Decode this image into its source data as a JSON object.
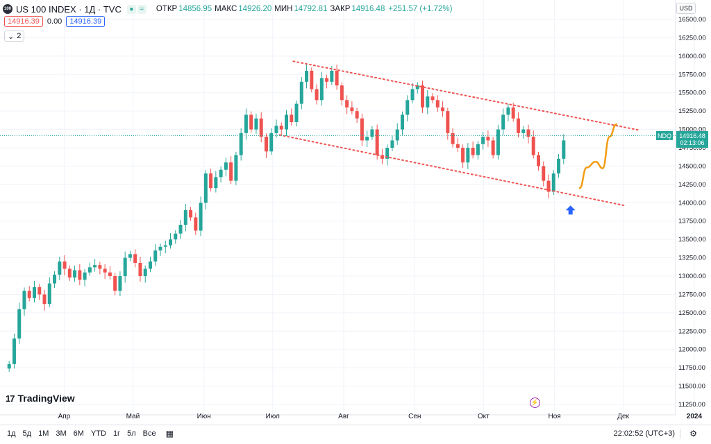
{
  "header": {
    "logo_text": "100",
    "title": "US 100 INDEX · 1Д · TVC",
    "icons": [
      "dot-icon",
      "wave-icon"
    ],
    "open_label": "ОТКР",
    "open": "14856.95",
    "high_label": "МАКС",
    "high": "14926.20",
    "low_label": "МИН",
    "low": "14792.81",
    "close_label": "ЗАКР",
    "close": "14916.48",
    "change": "+251.57 (+1.72%)",
    "bid": "14916.39",
    "spread": "0.00",
    "ask": "14916.39",
    "indicators_count": "2",
    "currency": "USD"
  },
  "price_tags": {
    "symbol": "NDQ",
    "price": "14916.48",
    "countdown": "02:13:06"
  },
  "branding": {
    "mark": "17",
    "name": "TradingView"
  },
  "bottom_bar": {
    "timeframes": [
      "1д",
      "5д",
      "1М",
      "3М",
      "6М",
      "YTD",
      "1г",
      "5л",
      "Все"
    ],
    "clock": "22:02:52 (UTC+3)"
  },
  "colors": {
    "up": "#26a69a",
    "down": "#ef5350",
    "trendline": "#ef5350",
    "projection": "#f39c12",
    "marker": "#2962ff"
  },
  "chart_data": {
    "type": "candlestick",
    "title": "US 100 INDEX · 1Д · TVC",
    "ylim": [
      11150,
      16600
    ],
    "y_ticks": [
      11250,
      11500,
      11750,
      12000,
      12250,
      12500,
      12750,
      13000,
      13250,
      13500,
      13750,
      14000,
      14250,
      14500,
      14750,
      15000,
      15250,
      15500,
      15750,
      16000,
      16250,
      16500
    ],
    "x_ticks": [
      {
        "label": "Апр",
        "day": 25
      },
      {
        "label": "Май",
        "day": 55
      },
      {
        "label": "Июн",
        "day": 86
      },
      {
        "label": "Июл",
        "day": 116
      },
      {
        "label": "Авг",
        "day": 147
      },
      {
        "label": "Сен",
        "day": 178
      },
      {
        "label": "Окт",
        "day": 208
      },
      {
        "label": "Ноя",
        "day": 239
      },
      {
        "label": "Дек",
        "day": 269
      },
      {
        "label": "2024",
        "day": 300
      }
    ],
    "x_range": [
      0,
      318
    ],
    "candle_days_start": 1,
    "closes": [
      11800,
      12150,
      12550,
      12800,
      12700,
      12850,
      12750,
      12620,
      12900,
      13020,
      13200,
      13100,
      12980,
      13080,
      12950,
      13050,
      13120,
      13150,
      13100,
      13050,
      13000,
      12800,
      13000,
      13250,
      13300,
      13180,
      13000,
      13100,
      13200,
      13350,
      13400,
      13420,
      13500,
      13580,
      13700,
      13900,
      13800,
      13620,
      14000,
      14400,
      14200,
      14350,
      14450,
      14550,
      14300,
      14650,
      14950,
      15200,
      15000,
      15150,
      14900,
      14700,
      14950,
      15050,
      15000,
      15200,
      15100,
      15350,
      15650,
      15800,
      15550,
      15400,
      15700,
      15650,
      15800,
      15600,
      15400,
      15300,
      15250,
      15150,
      14850,
      14900,
      15000,
      14650,
      14600,
      14750,
      14850,
      15000,
      15200,
      15400,
      15550,
      15600,
      15300,
      15450,
      15400,
      15300,
      15250,
      14950,
      14800,
      14750,
      14550,
      14750,
      14650,
      14800,
      14900,
      14850,
      14650,
      15000,
      15200,
      15300,
      15150,
      14950,
      15000,
      14900,
      14650,
      14500,
      14300,
      14150,
      14400,
      14600,
      14850
    ],
    "trendlines": [
      {
        "style": "dotted",
        "from": {
          "day": 125,
          "value": 15930
        },
        "to": {
          "day": 276,
          "value": 14990
        }
      },
      {
        "style": "dotted",
        "from": {
          "day": 119,
          "value": 14925
        },
        "to": {
          "day": 270,
          "value": 13960
        }
      }
    ],
    "projection": [
      {
        "day": 250,
        "value": 14200
      },
      {
        "day": 253,
        "value": 14480
      },
      {
        "day": 257,
        "value": 14560
      },
      {
        "day": 260,
        "value": 14470
      },
      {
        "day": 263,
        "value": 14900
      },
      {
        "day": 266,
        "value": 15070
      }
    ],
    "marker": {
      "day": 246,
      "value": 14000,
      "shape": "up-arrow"
    },
    "last_price": 14916.48
  }
}
